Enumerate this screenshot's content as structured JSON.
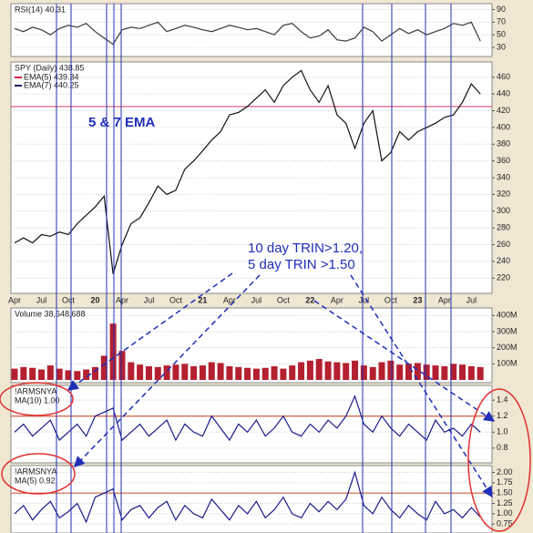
{
  "chart_data": [
    {
      "type": "line",
      "title": "RSI(14) 40.31",
      "color": "#3a3a3a",
      "grid": true,
      "values": [
        60,
        55,
        62,
        58,
        50,
        60,
        65,
        62,
        68,
        55,
        45,
        35,
        58,
        62,
        60,
        65,
        70,
        55,
        60,
        65,
        62,
        58,
        55,
        60,
        65,
        62,
        58,
        60,
        55,
        50,
        65,
        68,
        55,
        45,
        48,
        58,
        42,
        40,
        45,
        62,
        55,
        40,
        50,
        60,
        52,
        58,
        50,
        55,
        60,
        68,
        65,
        70,
        40
      ],
      "ylim": [
        20,
        95
      ],
      "yticks": [
        90,
        70,
        50,
        30
      ]
    },
    {
      "type": "line",
      "title": "SPY (Daily) 438.85",
      "color": "#111111",
      "grid": true,
      "legend": [
        {
          "label": "EMA(5) 439.34",
          "color": "#d02040"
        },
        {
          "label": "EMA(7) 440.25",
          "color": "#1a1a6e"
        }
      ],
      "annotations": [
        "5 & 7 EMA",
        "10 day TRIN>1.20,",
        "5 day TRIN >1.50"
      ],
      "categories": [
        "Apr",
        null,
        null,
        "Jul",
        null,
        null,
        "Oct",
        null,
        null,
        "20",
        null,
        null,
        "Apr",
        null,
        null,
        "Jul",
        null,
        null,
        "Oct",
        null,
        null,
        "21",
        null,
        null,
        "Apr",
        null,
        null,
        "Jul",
        null,
        null,
        "Oct",
        null,
        null,
        "22",
        null,
        null,
        "Apr",
        null,
        null,
        "Jul",
        null,
        null,
        "Oct",
        null,
        null,
        "23",
        null,
        null,
        "Apr",
        null,
        null,
        "Jul",
        null
      ],
      "values": [
        262,
        268,
        262,
        272,
        270,
        275,
        272,
        285,
        295,
        305,
        318,
        225,
        260,
        285,
        292,
        310,
        330,
        320,
        325,
        350,
        360,
        372,
        385,
        395,
        415,
        418,
        425,
        435,
        445,
        430,
        450,
        460,
        468,
        445,
        430,
        450,
        415,
        405,
        375,
        405,
        420,
        360,
        370,
        395,
        385,
        395,
        400,
        405,
        412,
        415,
        430,
        452,
        440
      ],
      "ylim": [
        205,
        475
      ],
      "yticks": [
        460,
        440,
        420,
        400,
        380,
        360,
        340,
        320,
        300,
        280,
        260,
        240,
        220
      ],
      "hline": 425,
      "hline_color": "#e05070"
    },
    {
      "type": "bar",
      "title": "Volume 38,648,688",
      "color": "#b52030",
      "grid": true,
      "values": [
        70000000,
        80000000,
        75000000,
        65000000,
        90000000,
        70000000,
        60000000,
        55000000,
        65000000,
        80000000,
        150000000,
        350000000,
        180000000,
        110000000,
        95000000,
        85000000,
        80000000,
        90000000,
        95000000,
        100000000,
        85000000,
        90000000,
        110000000,
        105000000,
        85000000,
        80000000,
        75000000,
        70000000,
        75000000,
        85000000,
        70000000,
        90000000,
        110000000,
        120000000,
        130000000,
        115000000,
        110000000,
        105000000,
        120000000,
        90000000,
        80000000,
        110000000,
        120000000,
        95000000,
        100000000,
        105000000,
        95000000,
        90000000,
        85000000,
        100000000,
        95000000,
        85000000,
        80000000
      ],
      "ylim": [
        0,
        430000000
      ],
      "yticks": [
        {
          "value": 400000000,
          "label": "400M"
        },
        {
          "value": 300000000,
          "label": "300M"
        },
        {
          "value": 200000000,
          "label": "200M"
        },
        {
          "value": 100000000,
          "label": "100M"
        }
      ]
    },
    {
      "type": "line",
      "title": "!ARMSNYA",
      "subtitle": "MA(10) 1.00",
      "color": "#1a1a8a",
      "grid": true,
      "values": [
        1.0,
        1.1,
        0.95,
        1.05,
        1.15,
        0.9,
        1.0,
        1.1,
        0.95,
        1.2,
        1.25,
        1.3,
        0.9,
        1.0,
        1.1,
        0.95,
        1.05,
        1.15,
        0.9,
        1.1,
        1.0,
        0.95,
        1.2,
        1.05,
        0.9,
        1.1,
        1.0,
        1.15,
        0.95,
        1.05,
        1.2,
        1.0,
        0.95,
        1.1,
        1.0,
        1.15,
        1.05,
        1.2,
        1.45,
        1.1,
        1.0,
        1.2,
        1.05,
        0.95,
        1.1,
        1.0,
        0.9,
        1.15,
        1.0,
        1.05,
        0.95,
        1.1,
        1.0
      ],
      "ylim": [
        0.65,
        1.55
      ],
      "yticks": [
        1.4,
        1.2,
        {
          "value": 1,
          "label": "1.0"
        },
        0.8
      ],
      "hline": 1.2,
      "hline_color": "#d06040"
    },
    {
      "type": "line",
      "title": "!ARMSNYA",
      "subtitle": "MA(5) 0.92",
      "color": "#1a1a8a",
      "grid": true,
      "values": [
        1.0,
        1.2,
        0.85,
        1.1,
        1.3,
        0.9,
        1.05,
        1.25,
        0.8,
        1.4,
        1.5,
        1.6,
        0.85,
        1.1,
        1.2,
        0.9,
        1.15,
        1.3,
        0.85,
        1.2,
        1.0,
        0.9,
        1.35,
        1.1,
        0.85,
        1.2,
        1.0,
        1.3,
        0.9,
        1.1,
        1.4,
        1.0,
        0.9,
        1.25,
        1.05,
        1.3,
        1.1,
        1.35,
        2.0,
        1.2,
        1.0,
        1.4,
        1.1,
        0.9,
        1.2,
        1.0,
        0.85,
        1.3,
        1.0,
        1.1,
        0.9,
        1.15,
        0.92
      ],
      "ylim": [
        0.6,
        2.1
      ],
      "yticks": [
        {
          "value": 2,
          "label": "2.00"
        },
        {
          "value": 1.75,
          "label": "1.75"
        },
        {
          "value": 1.5,
          "label": "1.50"
        },
        {
          "value": 1.25,
          "label": "1.25"
        },
        {
          "value": 1,
          "label": "1.00"
        },
        {
          "value": 0.75,
          "label": "0.75"
        }
      ],
      "hline": 1.5,
      "hline_color": "#d06040"
    }
  ]
}
